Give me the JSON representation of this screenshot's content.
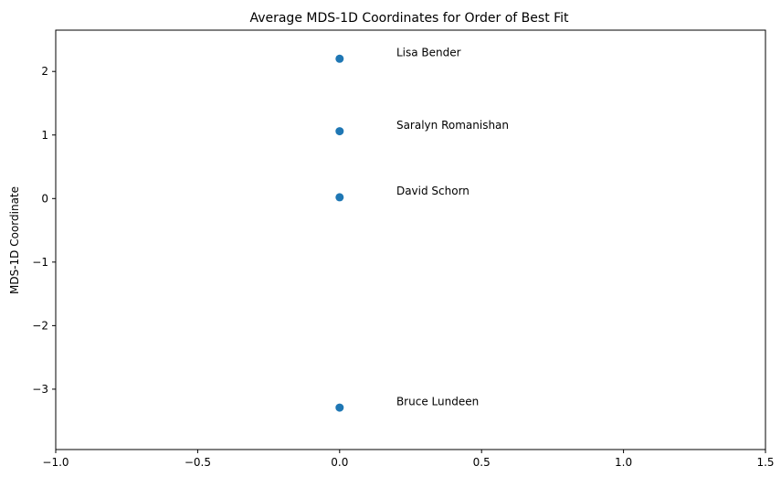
{
  "chart_data": {
    "type": "scatter",
    "title": "Average MDS-1D Coordinates for Order of Best Fit",
    "xlabel": "",
    "ylabel": "MDS-1D Coordinate",
    "xlim": [
      -1.0,
      1.5
    ],
    "ylim": [
      -3.95,
      2.65
    ],
    "xticks": [
      -1.0,
      -0.5,
      0.0,
      0.5,
      1.0,
      1.5
    ],
    "xtick_labels": [
      "−1.0",
      "−0.5",
      "0.0",
      "0.5",
      "1.0",
      "1.5"
    ],
    "yticks": [
      2,
      1,
      0,
      -1,
      -2,
      -3
    ],
    "ytick_labels": [
      "2",
      "1",
      "0",
      "−1",
      "−2",
      "−3"
    ],
    "grid": false,
    "marker_color": "#1f77b4",
    "points": [
      {
        "label": "Lisa Bender",
        "x": 0.0,
        "y": 2.2
      },
      {
        "label": "Saralyn Romanishan",
        "x": 0.0,
        "y": 1.06
      },
      {
        "label": "David Schorn",
        "x": 0.0,
        "y": 0.02
      },
      {
        "label": "Bruce Lundeen",
        "x": 0.0,
        "y": -3.29
      }
    ],
    "annotation_offset": {
      "x": 0.2,
      "y": 0.04
    }
  }
}
